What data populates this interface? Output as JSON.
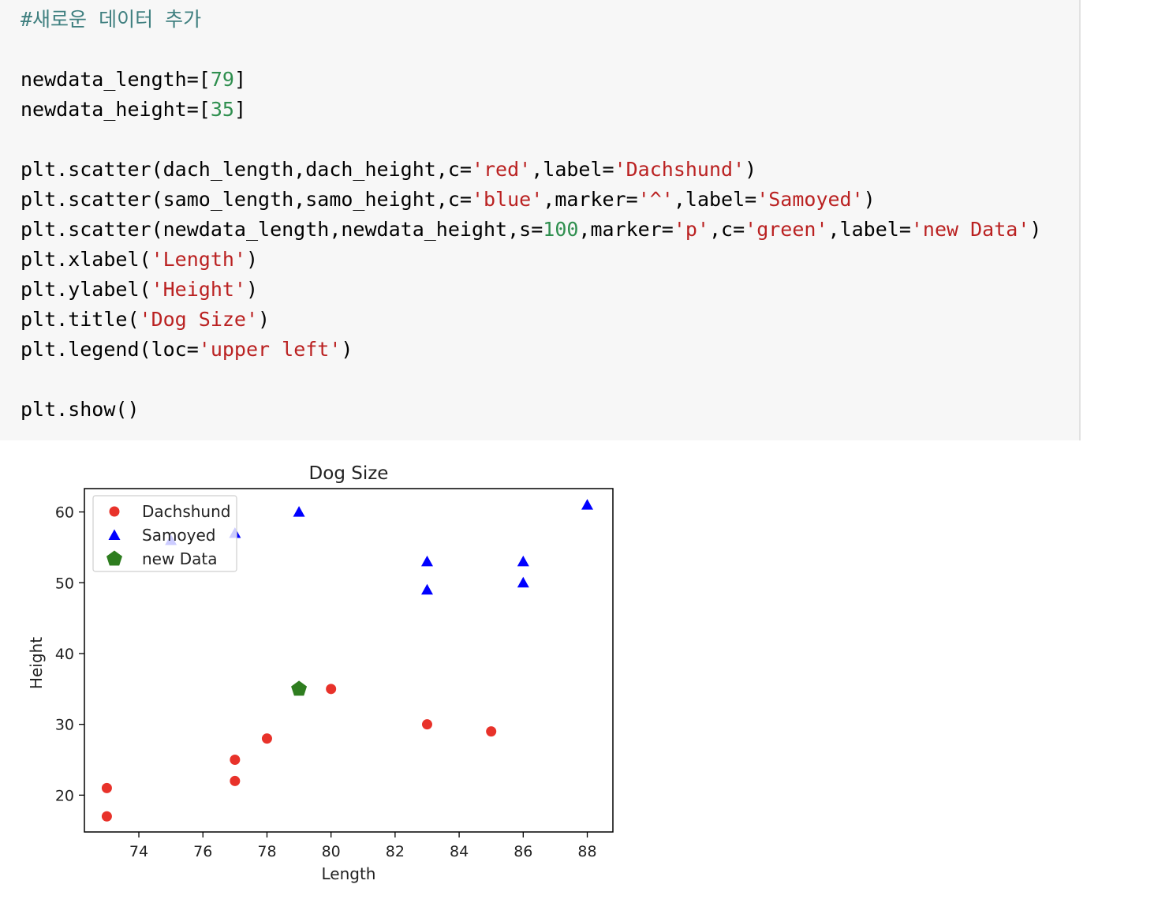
{
  "code": {
    "lines": [
      [
        {
          "t": "#새로운 데이터 추가",
          "c": "comment"
        }
      ],
      [],
      [
        {
          "t": "newdata_length=[",
          "c": "plain"
        },
        {
          "t": "79",
          "c": "number"
        },
        {
          "t": "]",
          "c": "plain"
        }
      ],
      [
        {
          "t": "newdata_height=[",
          "c": "plain"
        },
        {
          "t": "35",
          "c": "number"
        },
        {
          "t": "]",
          "c": "plain"
        }
      ],
      [],
      [
        {
          "t": "plt.scatter(dach_length,dach_height,c=",
          "c": "plain"
        },
        {
          "t": "'red'",
          "c": "string"
        },
        {
          "t": ",label=",
          "c": "plain"
        },
        {
          "t": "'Dachshund'",
          "c": "string"
        },
        {
          "t": ")",
          "c": "plain"
        }
      ],
      [
        {
          "t": "plt.scatter(samo_length,samo_height,c=",
          "c": "plain"
        },
        {
          "t": "'blue'",
          "c": "string"
        },
        {
          "t": ",marker=",
          "c": "plain"
        },
        {
          "t": "'^'",
          "c": "string"
        },
        {
          "t": ",label=",
          "c": "plain"
        },
        {
          "t": "'Samoyed'",
          "c": "string"
        },
        {
          "t": ")",
          "c": "plain"
        }
      ],
      [
        {
          "t": "plt.scatter(newdata_length,newdata_height,s=",
          "c": "plain"
        },
        {
          "t": "100",
          "c": "number"
        },
        {
          "t": ",marker=",
          "c": "plain"
        },
        {
          "t": "'p'",
          "c": "string"
        },
        {
          "t": ",c=",
          "c": "plain"
        },
        {
          "t": "'green'",
          "c": "string"
        },
        {
          "t": ",label=",
          "c": "plain"
        },
        {
          "t": "'new Data'",
          "c": "string"
        },
        {
          "t": ")",
          "c": "plain"
        }
      ],
      [
        {
          "t": "plt.xlabel(",
          "c": "plain"
        },
        {
          "t": "'Length'",
          "c": "string"
        },
        {
          "t": ")",
          "c": "plain"
        }
      ],
      [
        {
          "t": "plt.ylabel(",
          "c": "plain"
        },
        {
          "t": "'Height'",
          "c": "string"
        },
        {
          "t": ")",
          "c": "plain"
        }
      ],
      [
        {
          "t": "plt.title(",
          "c": "plain"
        },
        {
          "t": "'Dog Size'",
          "c": "string"
        },
        {
          "t": ")",
          "c": "plain"
        }
      ],
      [
        {
          "t": "plt.legend(loc=",
          "c": "plain"
        },
        {
          "t": "'upper left'",
          "c": "string"
        },
        {
          "t": ")",
          "c": "plain"
        }
      ],
      [],
      [
        {
          "t": "plt.show()",
          "c": "plain"
        }
      ]
    ]
  },
  "chart_data": {
    "type": "scatter",
    "title": "Dog Size",
    "xlabel": "Length",
    "ylabel": "Height",
    "xlim": [
      72.3,
      88.8
    ],
    "ylim": [
      14.8,
      63.3
    ],
    "xticks": [
      74,
      76,
      78,
      80,
      82,
      84,
      86,
      88
    ],
    "yticks": [
      20,
      30,
      40,
      50,
      60
    ],
    "grid": false,
    "legend_position": "upper left",
    "series": [
      {
        "name": "Dachshund",
        "marker": "circle",
        "color": "#e8322a",
        "points": [
          [
            73,
            21
          ],
          [
            73,
            17
          ],
          [
            77,
            25
          ],
          [
            77,
            22
          ],
          [
            78,
            28
          ],
          [
            80,
            35
          ],
          [
            83,
            30
          ],
          [
            85,
            29
          ]
        ]
      },
      {
        "name": "Samoyed",
        "marker": "triangle",
        "color": "#0000ff",
        "points": [
          [
            75,
            56
          ],
          [
            77,
            57
          ],
          [
            79,
            60
          ],
          [
            83,
            53
          ],
          [
            83,
            49
          ],
          [
            86,
            53
          ],
          [
            86,
            50
          ],
          [
            88,
            61
          ]
        ]
      },
      {
        "name": "new Data",
        "marker": "pentagon",
        "color": "#2e7d1f",
        "points": [
          [
            79,
            35
          ]
        ]
      }
    ]
  }
}
